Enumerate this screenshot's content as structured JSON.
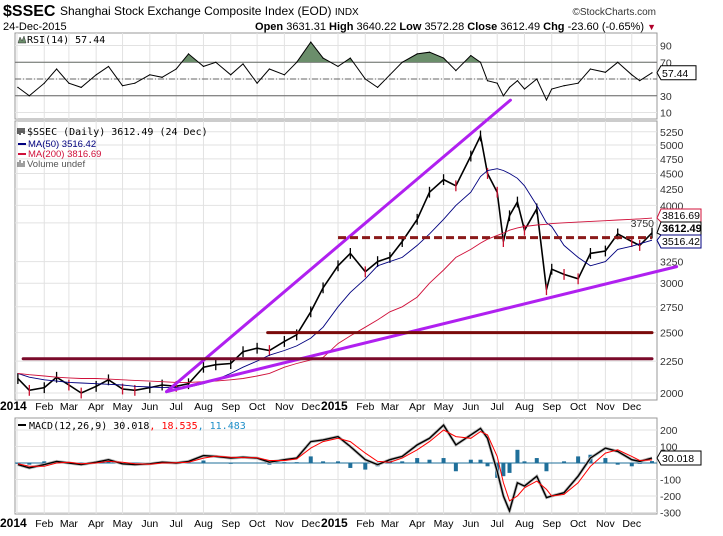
{
  "header": {
    "symbol": "$SSEC",
    "name": "Shanghai Stock Exchange Composite Index (EOD)",
    "exchange": "INDX",
    "date": "24-Dec-2015",
    "copyright": "©StockCharts.com",
    "open_label": "Open",
    "open": "3631.31",
    "high_label": "High",
    "high": "3640.22",
    "low_label": "Low",
    "low": "3572.28",
    "close_label": "Close",
    "close": "3612.49",
    "chg_label": "Chg",
    "chg": "-23.60 (-0.65%)",
    "chg_arrow": "▼",
    "down_color": "#b0002a"
  },
  "legend": {
    "rsi": "RSI(14) 57.44",
    "price": "$SSEC (Daily) 3612.49 (24 Dec)",
    "ma50": "MA(50) 3516.42",
    "ma200": "MA(200) 3816.69",
    "volume": "Volume undef",
    "macd_main": "MACD(12,26,9) 30.018",
    "macd_signal": ", 18.535",
    "macd_hist": ", 11.483"
  },
  "chart_data": {
    "type": "line",
    "x": [
      "2014-01-02",
      "2014-01-15",
      "2014-02-01",
      "2014-02-15",
      "2014-03-01",
      "2014-03-15",
      "2014-04-01",
      "2014-04-15",
      "2014-05-01",
      "2014-05-15",
      "2014-06-01",
      "2014-06-15",
      "2014-07-01",
      "2014-07-15",
      "2014-08-01",
      "2014-08-15",
      "2014-09-01",
      "2014-09-15",
      "2014-10-01",
      "2014-10-15",
      "2014-11-01",
      "2014-11-15",
      "2014-12-01",
      "2014-12-15",
      "2015-01-01",
      "2015-01-15",
      "2015-02-01",
      "2015-02-15",
      "2015-03-01",
      "2015-03-15",
      "2015-04-01",
      "2015-04-15",
      "2015-05-01",
      "2015-05-15",
      "2015-06-01",
      "2015-06-12",
      "2015-06-20",
      "2015-07-01",
      "2015-07-08",
      "2015-07-15",
      "2015-07-24",
      "2015-08-01",
      "2015-08-15",
      "2015-08-26",
      "2015-09-01",
      "2015-09-15",
      "2015-10-01",
      "2015-10-15",
      "2015-11-01",
      "2015-11-15",
      "2015-12-01",
      "2015-12-10",
      "2015-12-24"
    ],
    "x_ticks": [
      {
        "date": "2014-01-01",
        "label": "2014",
        "bold": true
      },
      {
        "date": "2014-02-01",
        "label": "Feb"
      },
      {
        "date": "2014-03-01",
        "label": "Mar"
      },
      {
        "date": "2014-04-01",
        "label": "Apr"
      },
      {
        "date": "2014-05-01",
        "label": "May"
      },
      {
        "date": "2014-06-01",
        "label": "Jun"
      },
      {
        "date": "2014-07-01",
        "label": "Jul"
      },
      {
        "date": "2014-08-01",
        "label": "Aug"
      },
      {
        "date": "2014-09-01",
        "label": "Sep"
      },
      {
        "date": "2014-10-01",
        "label": "Oct"
      },
      {
        "date": "2014-11-01",
        "label": "Nov"
      },
      {
        "date": "2014-12-01",
        "label": "Dec"
      },
      {
        "date": "2015-01-01",
        "label": "2015",
        "bold": true
      },
      {
        "date": "2015-02-01",
        "label": "Feb"
      },
      {
        "date": "2015-03-01",
        "label": "Mar"
      },
      {
        "date": "2015-04-01",
        "label": "Apr"
      },
      {
        "date": "2015-05-01",
        "label": "May"
      },
      {
        "date": "2015-06-01",
        "label": "Jun"
      },
      {
        "date": "2015-07-01",
        "label": "Jul"
      },
      {
        "date": "2015-08-01",
        "label": "Aug"
      },
      {
        "date": "2015-09-01",
        "label": "Sep"
      },
      {
        "date": "2015-10-01",
        "label": "Oct"
      },
      {
        "date": "2015-11-01",
        "label": "Nov"
      },
      {
        "date": "2015-12-01",
        "label": "Dec"
      }
    ],
    "price_panel": {
      "scale": "log",
      "ylim": [
        1960,
        5400
      ],
      "y_ticks": [
        2000,
        2250,
        2500,
        2750,
        3000,
        3250,
        3750,
        4000,
        4250,
        4500,
        4750,
        5000,
        5250
      ],
      "grid": true,
      "series": [
        {
          "name": "$SSEC",
          "color": "#000000",
          "values": [
            2110,
            2020,
            2040,
            2120,
            2060,
            2000,
            2050,
            2100,
            2030,
            2020,
            2040,
            2060,
            2050,
            2070,
            2200,
            2220,
            2230,
            2330,
            2360,
            2340,
            2420,
            2480,
            2700,
            2950,
            3200,
            3350,
            3130,
            3250,
            3300,
            3500,
            3800,
            4200,
            4400,
            4300,
            4800,
            5170,
            4500,
            4200,
            3500,
            3850,
            4050,
            3650,
            3950,
            2930,
            3160,
            3100,
            3050,
            3350,
            3380,
            3600,
            3500,
            3450,
            3612.49
          ]
        },
        {
          "name": "MA(50)",
          "color": "#00007f",
          "values": [
            2150,
            2120,
            2100,
            2090,
            2080,
            2075,
            2070,
            2065,
            2060,
            2050,
            2045,
            2040,
            2040,
            2045,
            2070,
            2100,
            2150,
            2200,
            2250,
            2300,
            2340,
            2380,
            2450,
            2550,
            2750,
            2900,
            3050,
            3200,
            3250,
            3300,
            3450,
            3600,
            3800,
            4000,
            4200,
            4450,
            4550,
            4580,
            4550,
            4500,
            4420,
            4300,
            4000,
            3750,
            3700,
            3450,
            3300,
            3200,
            3250,
            3400,
            3440,
            3470,
            3516.42
          ]
        },
        {
          "name": "MA(200)",
          "color": "#d0103a",
          "values": [
            2150,
            2140,
            2130,
            2120,
            2115,
            2110,
            2110,
            2105,
            2100,
            2095,
            2090,
            2085,
            2080,
            2080,
            2085,
            2090,
            2100,
            2110,
            2130,
            2150,
            2200,
            2230,
            2260,
            2280,
            2400,
            2470,
            2550,
            2620,
            2700,
            2750,
            2850,
            3000,
            3150,
            3300,
            3400,
            3480,
            3530,
            3580,
            3610,
            3650,
            3680,
            3700,
            3720,
            3730,
            3740,
            3750,
            3760,
            3770,
            3780,
            3790,
            3800,
            3805,
            3816.69
          ]
        }
      ],
      "last_labels": [
        {
          "value": "3816.69",
          "color": "#d0103a",
          "price": 3816.69
        },
        {
          "value": "3612.49",
          "color": "#000000",
          "price": 3612.49,
          "bold": true
        },
        {
          "value": "3516.42",
          "color": "#00007f",
          "price": 3516.42
        }
      ],
      "annotations": [
        {
          "kind": "trendline",
          "color": "#b020f0",
          "from": [
            "2014-06-20",
            2010
          ],
          "to": [
            "2015-07-16",
            5900
          ]
        },
        {
          "kind": "trendline",
          "color": "#b020f0",
          "from": [
            "2014-06-20",
            2010
          ],
          "to": [
            "2016-01-21",
            3190
          ]
        },
        {
          "kind": "horizontal",
          "color": "#7a0a2a",
          "from": [
            "2014-01-08",
            2270
          ],
          "to": [
            "2015-12-24",
            2270
          ]
        },
        {
          "kind": "horizontal",
          "color": "#7a0a0a",
          "from": [
            "2014-10-13",
            2500
          ],
          "to": [
            "2015-12-24",
            2500
          ]
        },
        {
          "kind": "horizontal-dashed",
          "color": "#8b1a1a",
          "from": [
            "2015-01-01",
            3550
          ],
          "to": [
            "2015-12-24",
            3550
          ]
        }
      ]
    },
    "rsi_panel": {
      "ylim": [
        0,
        100
      ],
      "y_ticks": [
        90,
        70,
        50,
        30,
        10
      ],
      "overbought": 70,
      "oversold": 30,
      "midline": 50,
      "fill_color": "#6b8e6b",
      "last_label": "57.44",
      "values": [
        40,
        30,
        45,
        62,
        45,
        40,
        55,
        65,
        42,
        45,
        55,
        52,
        62,
        80,
        65,
        70,
        55,
        68,
        45,
        62,
        55,
        70,
        94,
        75,
        65,
        75,
        50,
        40,
        55,
        70,
        80,
        82,
        75,
        60,
        78,
        70,
        48,
        45,
        30,
        40,
        48,
        38,
        50,
        25,
        38,
        42,
        45,
        62,
        58,
        70,
        55,
        48,
        57.44
      ]
    },
    "macd_panel": {
      "ylim": [
        -320,
        260
      ],
      "y_ticks": [
        200,
        100,
        -100,
        -200,
        -300
      ],
      "last_label": "30.018",
      "macd_color": "#000000",
      "signal_color": "#ff0000",
      "hist_color": "#1f6f9a",
      "macd": [
        -10,
        -30,
        -10,
        10,
        0,
        -10,
        5,
        20,
        -5,
        -10,
        -5,
        5,
        0,
        10,
        45,
        40,
        30,
        35,
        30,
        5,
        20,
        30,
        130,
        140,
        160,
        100,
        20,
        -10,
        20,
        40,
        110,
        150,
        230,
        110,
        170,
        210,
        150,
        -50,
        -200,
        -290,
        -120,
        -140,
        -80,
        -210,
        -200,
        -180,
        -80,
        30,
        90,
        70,
        20,
        10,
        30.018
      ],
      "signal": [
        -5,
        -20,
        -20,
        0,
        5,
        -5,
        0,
        10,
        5,
        -5,
        -8,
        0,
        2,
        5,
        30,
        42,
        35,
        33,
        32,
        15,
        15,
        25,
        90,
        130,
        150,
        130,
        60,
        10,
        5,
        30,
        80,
        130,
        200,
        160,
        150,
        190,
        170,
        40,
        -120,
        -230,
        -200,
        -150,
        -110,
        -160,
        -200,
        -190,
        -120,
        -20,
        60,
        80,
        40,
        15,
        18.535
      ]
    }
  }
}
